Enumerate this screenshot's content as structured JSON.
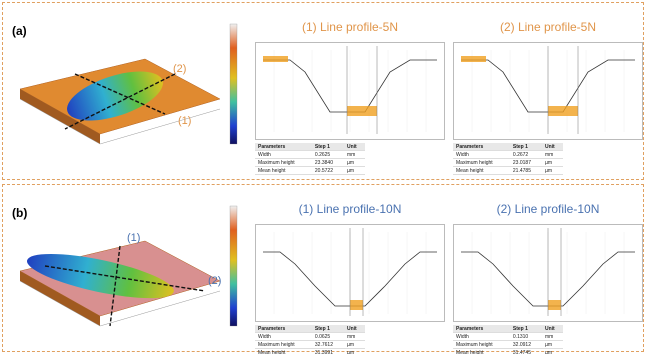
{
  "panels": [
    {
      "label": "(a)",
      "surface_labels": [
        "(2)",
        "(1)"
      ],
      "profiles": [
        {
          "title": "(1)  Line profile-5N",
          "table": {
            "header": [
              "Parameters",
              "Step 1",
              "Unit"
            ],
            "rows": [
              [
                "Width",
                "0.2625",
                "mm"
              ],
              [
                "Maximum height",
                "23.3840",
                "µm"
              ],
              [
                "Mean height",
                "20.5722",
                "µm"
              ]
            ]
          }
        },
        {
          "title": "(2)  Line profile-5N",
          "table": {
            "header": [
              "Parameters",
              "Step 1",
              "Unit"
            ],
            "rows": [
              [
                "Width",
                "0.2672",
                "mm"
              ],
              [
                "Maximum height",
                "23.0187",
                "µm"
              ],
              [
                "Mean height",
                "21.4785",
                "µm"
              ]
            ]
          }
        }
      ]
    },
    {
      "label": "(b)",
      "surface_labels": [
        "(1)",
        "(2)"
      ],
      "profiles": [
        {
          "title": "(1)  Line profile-10N",
          "table": {
            "header": [
              "Parameters",
              "Step 1",
              "Unit"
            ],
            "rows": [
              [
                "Width",
                "0.0625",
                "mm"
              ],
              [
                "Maximum height",
                "32.7612",
                "µm"
              ],
              [
                "Mean height",
                "31.3991",
                "µm"
              ]
            ]
          }
        },
        {
          "title": "(2)  Line profile-10N",
          "table": {
            "header": [
              "Parameters",
              "Step 1",
              "Unit"
            ],
            "rows": [
              [
                "Width",
                "0.1310",
                "mm"
              ],
              [
                "Maximum height",
                "32.0912",
                "µm"
              ],
              [
                "Mean height",
                "31.4745",
                "µm"
              ]
            ]
          }
        }
      ]
    }
  ]
}
